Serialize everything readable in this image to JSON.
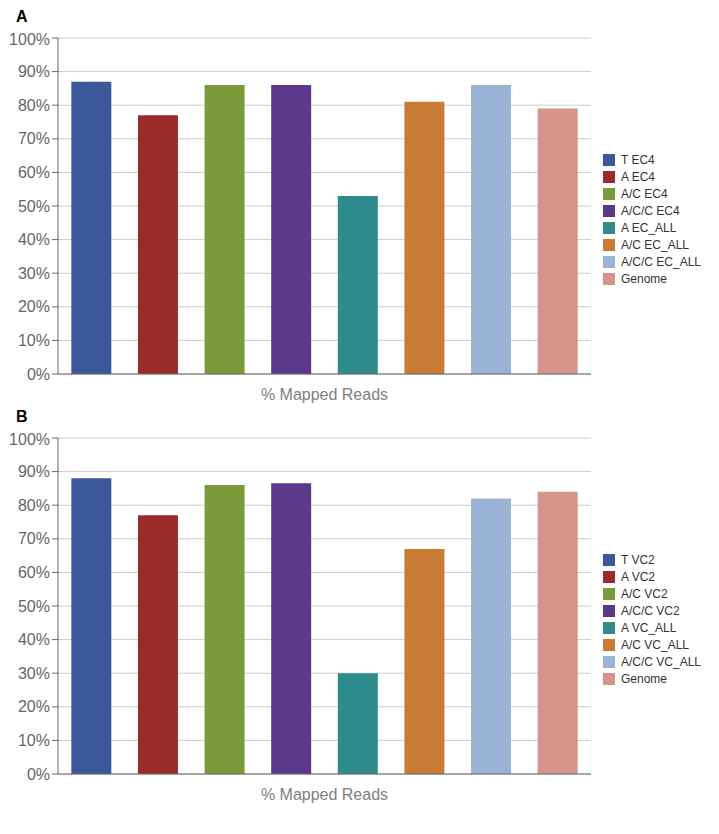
{
  "chart_data": [
    {
      "type": "bar",
      "title": "A",
      "categories": [
        "T EC4",
        "A EC4",
        "A/C EC4",
        "A/C/C EC4",
        "A EC_ALL",
        "A/C EC_ALL",
        "A/C/C EC_ALL",
        "Genome"
      ],
      "values": [
        0.87,
        0.77,
        0.86,
        0.86,
        0.53,
        0.81,
        0.86,
        0.79
      ],
      "colors": [
        "#3B5998",
        "#9B2B2B",
        "#7A9B3A",
        "#5B3A8B",
        "#2E8B8B",
        "#C77B35",
        "#9BB3D4",
        "#D4948A"
      ],
      "xlabel": "% Mapped Reads",
      "ylim": [
        0,
        1.0
      ],
      "yticks": [
        {
          "value": 0,
          "label": "0%"
        },
        {
          "value": 0.1,
          "label": "10%"
        },
        {
          "value": 0.2,
          "label": "20%"
        },
        {
          "value": 0.3,
          "label": "30%"
        },
        {
          "value": 0.4,
          "label": "40%"
        },
        {
          "value": 0.5,
          "label": "50%"
        },
        {
          "value": 0.6,
          "label": "60%"
        },
        {
          "value": 0.7,
          "label": "70%"
        },
        {
          "value": 0.8,
          "label": "80%"
        },
        {
          "value": 0.9,
          "label": "90%"
        },
        {
          "value": 1.0,
          "label": "100%"
        }
      ],
      "grid": true,
      "legend": "right",
      "tick_labels": "y"
    },
    {
      "type": "bar",
      "title": "B",
      "categories": [
        "T VC2",
        "A VC2",
        "A/C VC2",
        "A/C/C VC2",
        "A VC_ALL",
        "A/C VC_ALL",
        "A/C/C VC_ALL",
        "Genome"
      ],
      "values": [
        0.88,
        0.77,
        0.86,
        0.865,
        0.3,
        0.67,
        0.82,
        0.84
      ],
      "colors": [
        "#3B5998",
        "#9B2B2B",
        "#7A9B3A",
        "#5B3A8B",
        "#2E8B8B",
        "#C77B35",
        "#9BB3D4",
        "#D4948A"
      ],
      "xlabel": "% Mapped Reads",
      "ylim": [
        0,
        1.0
      ],
      "yticks": [
        {
          "value": 0,
          "label": "0%"
        },
        {
          "value": 0.1,
          "label": "10%"
        },
        {
          "value": 0.2,
          "label": "20%"
        },
        {
          "value": 0.3,
          "label": "30%"
        },
        {
          "value": 0.4,
          "label": "40%"
        },
        {
          "value": 0.5,
          "label": "50%"
        },
        {
          "value": 0.6,
          "label": "60%"
        },
        {
          "value": 0.7,
          "label": "70%"
        },
        {
          "value": 0.8,
          "label": "80%"
        },
        {
          "value": 0.9,
          "label": "90%"
        },
        {
          "value": 1.0,
          "label": "100%"
        }
      ],
      "grid": true,
      "legend": "right",
      "tick_labels": "y"
    }
  ]
}
